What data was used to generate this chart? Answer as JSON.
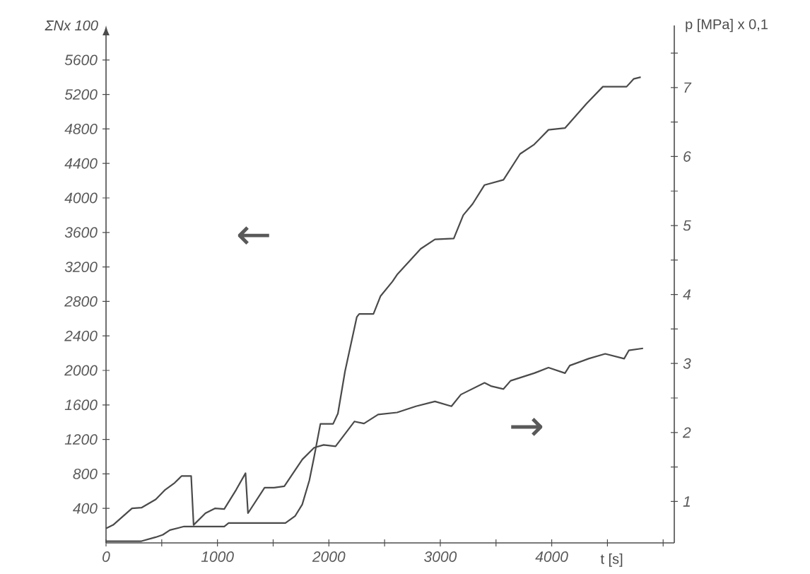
{
  "chart_data": {
    "type": "line",
    "ylabel": "ΣNx 100",
    "y2label": "p [MPa] x 0,1",
    "xlabel": "t [s]",
    "annotations": [
      "←",
      "→"
    ],
    "xlim": [
      0,
      5100
    ],
    "ylim": [
      0,
      6000
    ],
    "y2lim": [
      0.4,
      7.9
    ],
    "xticks": [
      0,
      {
        "value": 500,
        "label": null
      },
      1000,
      {
        "value": 1500,
        "label": null
      },
      2000,
      {
        "value": 2500,
        "label": null
      },
      3000,
      {
        "value": 3500,
        "label": null
      },
      4000,
      {
        "value": 4500,
        "label": null
      },
      {
        "value": 5000,
        "label": null
      }
    ],
    "yticks": [
      400,
      800,
      1200,
      1600,
      2000,
      2400,
      2800,
      3200,
      3600,
      4000,
      4400,
      4800,
      5200,
      5600
    ],
    "y2ticks": [
      1,
      {
        "value": 1.5,
        "label": null
      },
      2,
      {
        "value": 2.5,
        "label": null
      },
      3,
      {
        "value": 3.5,
        "label": null
      },
      4,
      {
        "value": 4.5,
        "label": null
      },
      5,
      {
        "value": 5.5,
        "label": null
      },
      6,
      {
        "value": 6.5,
        "label": null
      },
      7,
      {
        "value": 7.5,
        "label": null
      }
    ],
    "series": [
      {
        "color": "#4a4a4a",
        "x": [
          0,
          318,
          446,
          510,
          573,
          658,
          700,
          1061,
          1100,
          1610,
          1698,
          1761,
          1825,
          1868,
          1924,
          2038,
          2081,
          2145,
          2251,
          2272,
          2400,
          2463,
          2570,
          2612,
          2824,
          2952,
          3121,
          3206,
          3290,
          3397,
          3567,
          3716,
          3843,
          3971,
          4119,
          4310,
          4459,
          4672,
          4735,
          4799
        ],
        "values": [
          20,
          20,
          66,
          94,
          148,
          176,
          190,
          190,
          230,
          230,
          313,
          445,
          725,
          1000,
          1380,
          1380,
          1500,
          1990,
          2620,
          2655,
          2655,
          2860,
          3030,
          3110,
          3410,
          3520,
          3530,
          3800,
          3930,
          4150,
          4210,
          4510,
          4620,
          4790,
          4810,
          5090,
          5290,
          5290,
          5380,
          5400
        ]
      },
      {
        "color": "#4a4a4a",
        "axis": "y2",
        "x": [
          0,
          64,
          233,
          318,
          446,
          531,
          616,
          679,
          764,
          786,
          892,
          977,
          1061,
          1168,
          1252,
          1274,
          1423,
          1508,
          1600,
          1762,
          1868,
          1953,
          2060,
          2230,
          2315,
          2442,
          2612,
          2781,
          2952,
          3100,
          3185,
          3397,
          3460,
          3567,
          3631,
          3843,
          3971,
          4119,
          4162,
          4331,
          4480,
          4650,
          4692,
          4820
        ],
        "values": [
          0.61,
          0.66,
          0.9,
          0.91,
          1.03,
          1.17,
          1.27,
          1.37,
          1.37,
          0.66,
          0.83,
          0.9,
          0.89,
          1.17,
          1.41,
          0.83,
          1.2,
          1.2,
          1.22,
          1.61,
          1.78,
          1.82,
          1.8,
          2.16,
          2.13,
          2.26,
          2.29,
          2.38,
          2.45,
          2.38,
          2.55,
          2.72,
          2.67,
          2.63,
          2.75,
          2.86,
          2.94,
          2.86,
          2.97,
          3.07,
          3.14,
          3.07,
          3.19,
          3.22
        ]
      }
    ]
  }
}
